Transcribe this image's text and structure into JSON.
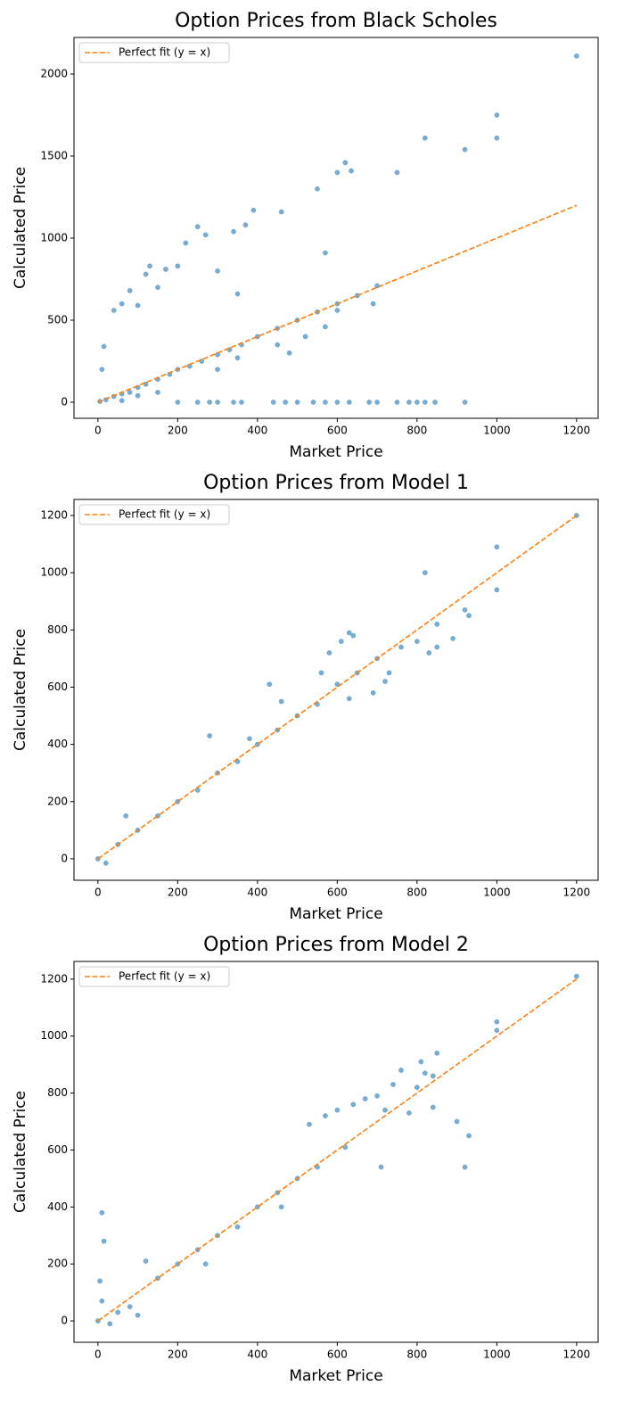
{
  "chart_data": [
    {
      "type": "scatter",
      "title": "Option Prices from Black Scholes",
      "xlabel": "Market Price",
      "ylabel": "Calculated Price",
      "xlim": [
        -60,
        1254
      ],
      "ylim": [
        -98,
        2223
      ],
      "xticks": [
        0,
        200,
        400,
        600,
        800,
        1000,
        1200
      ],
      "yticks": [
        0,
        500,
        1000,
        1500,
        2000
      ],
      "legend": "upper left",
      "series": [
        {
          "color": "#1f77b4",
          "x": [
            5,
            20,
            40,
            60,
            80,
            100,
            120,
            150,
            180,
            200,
            230,
            260,
            300,
            330,
            360,
            400,
            450,
            500,
            550,
            600,
            650,
            700,
            60,
            100,
            150,
            300,
            350,
            450,
            480,
            520,
            600,
            690,
            570,
            10,
            15,
            40,
            60,
            80,
            100,
            120,
            130,
            150,
            170,
            200,
            220,
            250,
            270,
            300,
            340,
            370,
            390,
            460,
            550,
            570,
            600,
            620,
            635,
            750,
            820,
            920,
            1000,
            1000,
            1200,
            350,
            200,
            250,
            280,
            300,
            340,
            360,
            440,
            470,
            500,
            540,
            570,
            600,
            630,
            680,
            700,
            750,
            780,
            800,
            820,
            845,
            920
          ],
          "values": [
            5,
            15,
            35,
            50,
            60,
            90,
            110,
            140,
            170,
            200,
            220,
            250,
            290,
            320,
            350,
            400,
            450,
            500,
            550,
            600,
            650,
            710,
            10,
            40,
            60,
            200,
            270,
            350,
            300,
            400,
            560,
            600,
            460,
            200,
            340,
            560,
            600,
            680,
            590,
            780,
            830,
            700,
            810,
            830,
            970,
            1070,
            1020,
            800,
            1040,
            1080,
            1170,
            1160,
            1300,
            910,
            1400,
            1460,
            1410,
            1400,
            1610,
            1540,
            1750,
            1610,
            2110,
            660,
            0,
            0,
            0,
            0,
            0,
            0,
            0,
            0,
            0,
            0,
            0,
            0,
            0,
            0,
            0,
            0,
            0,
            0,
            0,
            0,
            0
          ]
        },
        {
          "name": "Perfect fit (y = x)",
          "color": "#ff7f0e",
          "style": "dashed",
          "x": [
            0,
            1200
          ],
          "values": [
            0,
            1200
          ]
        }
      ]
    },
    {
      "type": "scatter",
      "title": "Option Prices from Model 1",
      "xlabel": "Market Price",
      "ylabel": "Calculated Price",
      "xlim": [
        -60,
        1254
      ],
      "ylim": [
        -75,
        1256
      ],
      "xticks": [
        0,
        200,
        400,
        600,
        800,
        1000,
        1200
      ],
      "yticks": [
        0,
        200,
        400,
        600,
        800,
        1000,
        1200
      ],
      "legend": "upper left",
      "series": [
        {
          "color": "#1f77b4",
          "x": [
            0,
            20,
            50,
            70,
            100,
            150,
            200,
            250,
            280,
            300,
            350,
            380,
            400,
            430,
            450,
            460,
            500,
            550,
            560,
            580,
            600,
            610,
            630,
            640,
            630,
            650,
            700,
            720,
            730,
            760,
            800,
            820,
            830,
            850,
            850,
            890,
            920,
            930,
            1000,
            1000,
            1200,
            690
          ],
          "values": [
            0,
            -15,
            50,
            150,
            100,
            150,
            200,
            240,
            430,
            300,
            340,
            420,
            400,
            610,
            450,
            550,
            500,
            540,
            650,
            720,
            610,
            760,
            790,
            780,
            560,
            650,
            700,
            620,
            650,
            740,
            760,
            1000,
            720,
            820,
            740,
            770,
            870,
            850,
            1090,
            940,
            1200,
            580
          ]
        },
        {
          "name": "Perfect fit (y = x)",
          "color": "#ff7f0e",
          "style": "dashed",
          "x": [
            0,
            1200
          ],
          "values": [
            0,
            1200
          ]
        }
      ]
    },
    {
      "type": "scatter",
      "title": "Option Prices from Model 2",
      "xlabel": "Market Price",
      "ylabel": "Calculated Price",
      "xlim": [
        -60,
        1254
      ],
      "ylim": [
        -75,
        1262
      ],
      "xticks": [
        0,
        200,
        400,
        600,
        800,
        1000,
        1200
      ],
      "yticks": [
        0,
        200,
        400,
        600,
        800,
        1000,
        1200
      ],
      "legend": "upper left",
      "series": [
        {
          "color": "#1f77b4",
          "x": [
            0,
            10,
            10,
            15,
            5,
            30,
            50,
            80,
            100,
            120,
            150,
            200,
            250,
            270,
            300,
            350,
            400,
            450,
            460,
            500,
            530,
            550,
            570,
            600,
            620,
            640,
            670,
            700,
            710,
            720,
            740,
            760,
            780,
            800,
            810,
            820,
            840,
            840,
            850,
            900,
            920,
            930,
            1000,
            1000,
            1200
          ],
          "values": [
            0,
            70,
            380,
            280,
            140,
            -10,
            30,
            50,
            20,
            210,
            150,
            200,
            250,
            200,
            300,
            330,
            400,
            450,
            400,
            500,
            690,
            540,
            720,
            740,
            610,
            760,
            780,
            790,
            540,
            740,
            830,
            880,
            730,
            820,
            910,
            870,
            860,
            750,
            940,
            700,
            540,
            650,
            1050,
            1020,
            1210
          ]
        },
        {
          "name": "Perfect fit (y = x)",
          "color": "#ff7f0e",
          "style": "dashed",
          "x": [
            0,
            1200
          ],
          "values": [
            0,
            1200
          ]
        }
      ]
    }
  ]
}
